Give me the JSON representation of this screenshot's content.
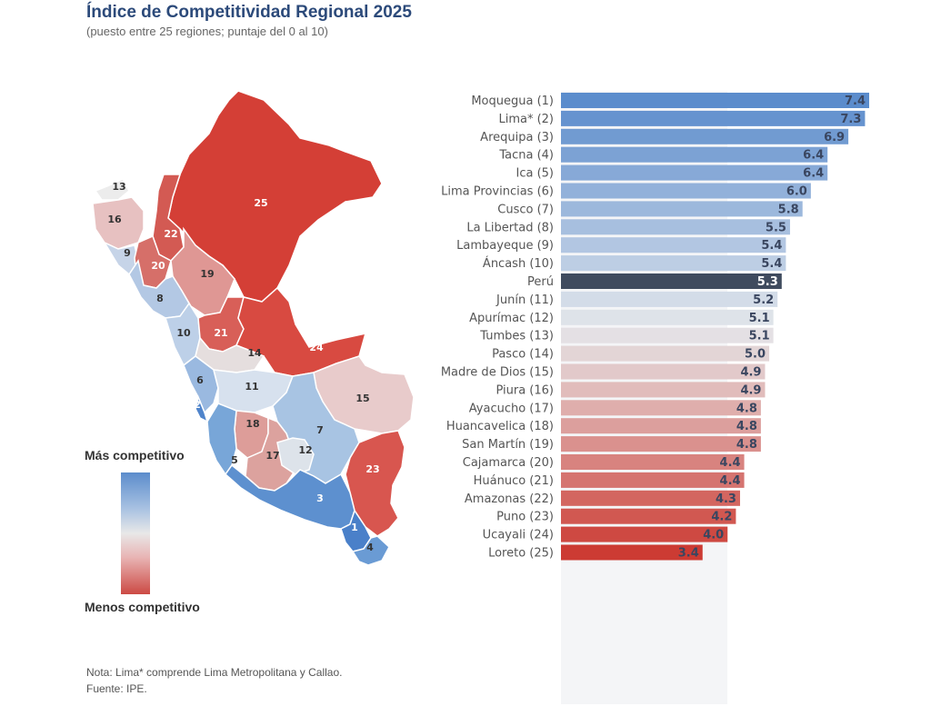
{
  "header": {
    "title": "Índice de Competitividad Regional 2025",
    "subtitle": "(puesto entre 25 regiones; puntaje del 0 al 10)"
  },
  "legend": {
    "top_label": "Más competitivo",
    "bottom_label": "Menos competitivo",
    "color_high": "#5b8ccc",
    "color_mid": "#e8e8e8",
    "color_low": "#cc4a44"
  },
  "footer": {
    "note": "Nota: Lima* comprende Lima Metropolitana y Callao.",
    "source": "Fuente: IPE."
  },
  "colors": {
    "peru_bar": "#3f4b5e"
  },
  "map_labels": [
    "1",
    "2",
    "3",
    "4",
    "5",
    "6",
    "7",
    "8",
    "9",
    "10",
    "11",
    "12",
    "13",
    "14",
    "15",
    "16",
    "17",
    "18",
    "19",
    "20",
    "21",
    "22",
    "23",
    "24",
    "25"
  ],
  "chart_data": {
    "type": "bar",
    "orientation": "horizontal",
    "categories": [
      "Moquegua (1)",
      "Lima* (2)",
      "Arequipa (3)",
      "Tacna (4)",
      "Ica (5)",
      "Lima Provincias (6)",
      "Cusco (7)",
      "La Libertad (8)",
      "Lambayeque (9)",
      "Áncash (10)",
      "Perú",
      "Junín (11)",
      "Apurímac (12)",
      "Tumbes (13)",
      "Pasco (14)",
      "Madre de Dios (15)",
      "Piura (16)",
      "Ayacucho (17)",
      "Huancavelica (18)",
      "San Martín (19)",
      "Cajamarca (20)",
      "Huánuco (21)",
      "Amazonas (22)",
      "Puno (23)",
      "Ucayali (24)",
      "Loreto (25)"
    ],
    "values": [
      7.4,
      7.3,
      6.9,
      6.4,
      6.4,
      6.0,
      5.8,
      5.5,
      5.4,
      5.4,
      5.3,
      5.2,
      5.1,
      5.1,
      5.0,
      4.9,
      4.9,
      4.8,
      4.8,
      4.8,
      4.4,
      4.4,
      4.3,
      4.2,
      4.0,
      3.4
    ],
    "value_labels": [
      "7.4",
      "7.3",
      "6.9",
      "6.4",
      "6.4",
      "6.0",
      "5.8",
      "5.5",
      "5.4",
      "5.4",
      "5.3",
      "5.2",
      "5.1",
      "5.1",
      "5.0",
      "4.9",
      "4.9",
      "4.8",
      "4.8",
      "4.8",
      "4.4",
      "4.4",
      "4.3",
      "4.2",
      "4.0",
      "3.4"
    ],
    "highlight": "Perú",
    "xlim": [
      0,
      7.4
    ]
  }
}
